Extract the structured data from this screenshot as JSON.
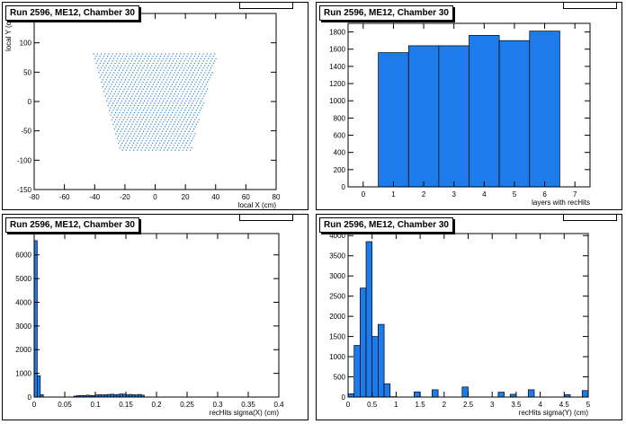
{
  "colors": {
    "fill": "#1e7bea",
    "stroke": "#000000",
    "points": "#2a7fd6"
  },
  "chart_data": [
    {
      "type": "scatter",
      "title": "Run 2596, ME12, Chamber 30",
      "xlabel": "local X (cm)",
      "ylabel": "local Y (cm)",
      "xlim": [
        -80,
        80
      ],
      "ylim": [
        -150,
        150
      ],
      "xticks": [
        -80,
        -60,
        -40,
        -20,
        0,
        20,
        40,
        60,
        80
      ],
      "yticks": [
        -150,
        -100,
        -50,
        0,
        50,
        100,
        150
      ],
      "region": {
        "y_top": 82,
        "y_bottom": -85,
        "x_half_top": 41,
        "x_half_bottom": 23
      },
      "point_rows": [
        82,
        78,
        74,
        70,
        66,
        62,
        58,
        54,
        50,
        46,
        42,
        38,
        34,
        30,
        26,
        22,
        18,
        14,
        10,
        6,
        2,
        -2,
        -6,
        -10,
        -14,
        -18,
        -22,
        -26,
        -30,
        -34,
        -38,
        -42,
        -46,
        -50,
        -54,
        -58,
        -62,
        -66,
        -70,
        -74,
        -78,
        -82
      ],
      "point_dx": 2.5
    },
    {
      "type": "bar",
      "title": "Run 2596, ME12, Chamber 30",
      "xlabel": "layers with recHits",
      "ylabel": "",
      "xlim": [
        -0.5,
        7.5
      ],
      "ylim": [
        0,
        1900
      ],
      "xticks": [
        0,
        1,
        2,
        3,
        4,
        5,
        6,
        7
      ],
      "yticks": [
        0,
        200,
        400,
        600,
        800,
        1000,
        1200,
        1400,
        1600,
        1800
      ],
      "bin_width": 1,
      "x": [
        1,
        2,
        3,
        4,
        5,
        6
      ],
      "values": [
        1560,
        1640,
        1640,
        1760,
        1700,
        1810
      ]
    },
    {
      "type": "bar",
      "title": "Run 2596, ME12, Chamber 30",
      "xlabel": "recHits sigma(X) (cm)",
      "ylabel": "",
      "xlim": [
        0,
        0.4
      ],
      "ylim": [
        0,
        6900
      ],
      "xticks": [
        0,
        0.05,
        0.1,
        0.15,
        0.2,
        0.25,
        0.3,
        0.35,
        0.4
      ],
      "xtick_labels": [
        "0",
        "0.05",
        "0.1",
        "0.15",
        "0.2",
        "0.25",
        "0.3",
        "0.35",
        "0.4"
      ],
      "yticks": [
        0,
        1000,
        2000,
        3000,
        4000,
        5000,
        6000
      ],
      "bin_width": 0.005,
      "x": [
        0,
        0.005,
        0.01,
        0.065,
        0.07,
        0.075,
        0.08,
        0.085,
        0.09,
        0.095,
        0.1,
        0.105,
        0.11,
        0.115,
        0.12,
        0.125,
        0.13,
        0.135,
        0.14,
        0.145,
        0.15,
        0.155,
        0.16,
        0.165,
        0.17,
        0.175
      ],
      "values": [
        6600,
        900,
        100,
        40,
        60,
        70,
        60,
        80,
        70,
        60,
        90,
        100,
        90,
        100,
        110,
        120,
        100,
        110,
        130,
        120,
        100,
        110,
        100,
        90,
        110,
        80
      ]
    },
    {
      "type": "bar",
      "title": "Run 2596, ME12, Chamber 30",
      "xlabel": "recHits sigma(Y) (cm)",
      "ylabel": "",
      "xlim": [
        0,
        5
      ],
      "ylim": [
        0,
        4050
      ],
      "xticks": [
        0,
        0.5,
        1,
        1.5,
        2,
        2.5,
        3,
        3.5,
        4,
        4.5,
        5
      ],
      "xtick_labels": [
        "0",
        "0.5",
        "1",
        "1.5",
        "2",
        "2.5",
        "3",
        "3.5",
        "4",
        "4.5",
        "5"
      ],
      "yticks": [
        0,
        500,
        1000,
        1500,
        2000,
        2500,
        3000,
        3500,
        4000
      ],
      "bin_width": 0.125,
      "x": [
        0,
        0.125,
        0.25,
        0.375,
        0.5,
        0.625,
        0.75,
        0.875,
        1.375,
        1.75,
        2.375,
        3.125,
        3.375,
        3.75,
        4.5,
        4.875
      ],
      "values": [
        80,
        1280,
        2700,
        3850,
        1500,
        1800,
        330,
        10,
        130,
        180,
        250,
        120,
        70,
        180,
        60,
        160
      ]
    }
  ]
}
